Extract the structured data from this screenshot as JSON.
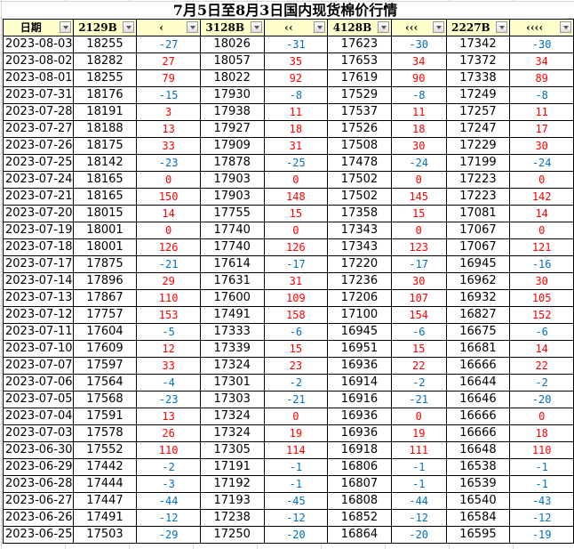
{
  "title": "7月5日至8月3日国内现货棉价行情",
  "colors": {
    "header_bg": "#ffffcc",
    "positive": "#ff0000",
    "negative": "#0070c0"
  },
  "columns": [
    "日期",
    "2129B",
    "‹",
    "3128B",
    "‹‹",
    "4128B",
    "‹‹‹",
    "2227B",
    "‹‹‹‹"
  ],
  "rows": [
    [
      "2023-08-03",
      "18255",
      "-27",
      "18026",
      "-31",
      "17623",
      "-30",
      "17342",
      "-30"
    ],
    [
      "2023-08-02",
      "18282",
      "27",
      "18057",
      "35",
      "17653",
      "34",
      "17372",
      "34"
    ],
    [
      "2023-08-01",
      "18255",
      "79",
      "18022",
      "92",
      "17619",
      "90",
      "17338",
      "89"
    ],
    [
      "2023-07-31",
      "18176",
      "-15",
      "17930",
      "-8",
      "17529",
      "-8",
      "17249",
      "-8"
    ],
    [
      "2023-07-28",
      "18191",
      "3",
      "17938",
      "11",
      "17537",
      "11",
      "17257",
      "11"
    ],
    [
      "2023-07-27",
      "18188",
      "13",
      "17927",
      "18",
      "17526",
      "18",
      "17247",
      "17"
    ],
    [
      "2023-07-26",
      "18175",
      "33",
      "17909",
      "31",
      "17508",
      "30",
      "17229",
      "30"
    ],
    [
      "2023-07-25",
      "18142",
      "-23",
      "17878",
      "-25",
      "17478",
      "-24",
      "17199",
      "-24"
    ],
    [
      "2023-07-24",
      "18165",
      "0",
      "17903",
      "0",
      "17502",
      "0",
      "17223",
      "0"
    ],
    [
      "2023-07-21",
      "18165",
      "150",
      "17903",
      "148",
      "17502",
      "145",
      "17223",
      "142"
    ],
    [
      "2023-07-20",
      "18015",
      "14",
      "17755",
      "15",
      "17358",
      "15",
      "17081",
      "14"
    ],
    [
      "2023-07-19",
      "18001",
      "0",
      "17740",
      "0",
      "17343",
      "0",
      "17067",
      "0"
    ],
    [
      "2023-07-18",
      "18001",
      "126",
      "17740",
      "126",
      "17343",
      "123",
      "17067",
      "121"
    ],
    [
      "2023-07-17",
      "17875",
      "-21",
      "17614",
      "-17",
      "17220",
      "-17",
      "16945",
      "-16"
    ],
    [
      "2023-07-14",
      "17896",
      "29",
      "17631",
      "31",
      "17236",
      "30",
      "16962",
      "30"
    ],
    [
      "2023-07-13",
      "17867",
      "110",
      "17600",
      "109",
      "17206",
      "107",
      "16932",
      "105"
    ],
    [
      "2023-07-12",
      "17757",
      "153",
      "17491",
      "158",
      "17100",
      "154",
      "16827",
      "152"
    ],
    [
      "2023-07-11",
      "17604",
      "-5",
      "17333",
      "-6",
      "16945",
      "-6",
      "16675",
      "-6"
    ],
    [
      "2023-07-10",
      "17609",
      "12",
      "17339",
      "15",
      "16951",
      "15",
      "16681",
      "14"
    ],
    [
      "2023-07-07",
      "17597",
      "33",
      "17324",
      "23",
      "16936",
      "22",
      "16666",
      "22"
    ],
    [
      "2023-07-06",
      "17564",
      "-4",
      "17301",
      "-2",
      "16914",
      "-2",
      "16644",
      "-2"
    ],
    [
      "2023-07-05",
      "17568",
      "-23",
      "17303",
      "-21",
      "16916",
      "-21",
      "16646",
      "-20"
    ],
    [
      "2023-07-04",
      "17591",
      "13",
      "17324",
      "0",
      "16936",
      "0",
      "16666",
      "0"
    ],
    [
      "2023-07-03",
      "17578",
      "26",
      "17324",
      "19",
      "16936",
      "19",
      "16666",
      "18"
    ],
    [
      "2023-06-30",
      "17552",
      "110",
      "17305",
      "114",
      "16918",
      "111",
      "16648",
      "110"
    ],
    [
      "2023-06-29",
      "17442",
      "-2",
      "17191",
      "-1",
      "16806",
      "-1",
      "16538",
      "-1"
    ],
    [
      "2023-06-28",
      "17444",
      "-3",
      "17192",
      "-1",
      "16807",
      "-1",
      "16539",
      "-1"
    ],
    [
      "2023-06-27",
      "17447",
      "-44",
      "17193",
      "-45",
      "16808",
      "-44",
      "16540",
      "-43"
    ],
    [
      "2023-06-26",
      "17491",
      "-12",
      "17238",
      "-12",
      "16852",
      "-12",
      "16584",
      "-12"
    ],
    [
      "2023-06-25",
      "17503",
      "-29",
      "17250",
      "-20",
      "16864",
      "-20",
      "16595",
      "-19"
    ]
  ]
}
